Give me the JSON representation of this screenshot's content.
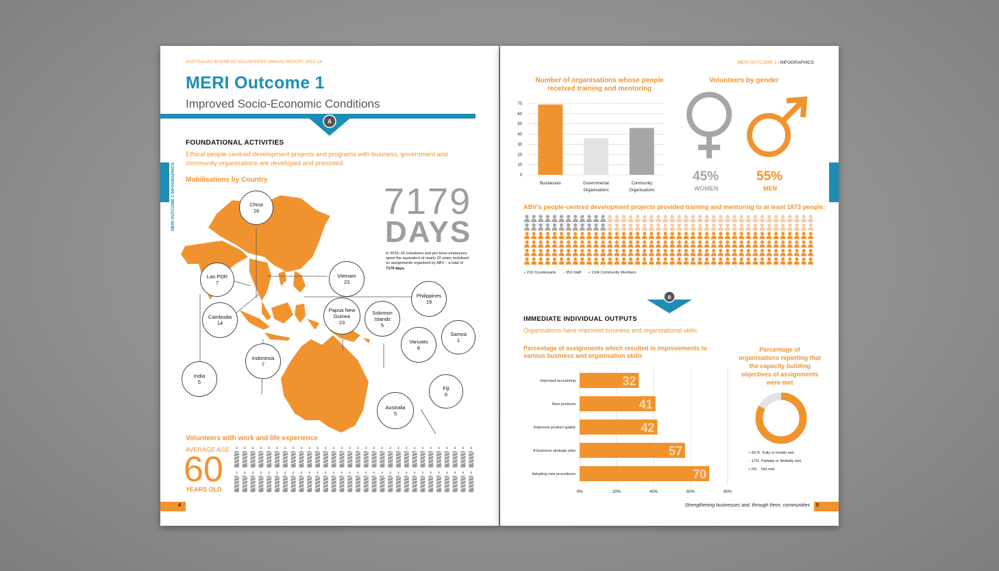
{
  "left_page": {
    "running_header": "AUSTRALIAN BUSINESS VOLUNTEERS ANNUAL REPORT 2015–16",
    "title": "MERI Outcome 1",
    "subtitle": "Improved Socio-Economic Conditions",
    "marker": "A",
    "side_tab": "MERI OUTCOME 1 INFOGRAPHICS",
    "section_heading": "FOUNDATIONAL ACTIVITIES",
    "section_text": "Ethical people-centred development projects and programs with business, government and community organisations are developed and promoted.",
    "map_heading": "Mobilisations by Country",
    "days_number": "7179",
    "days_word": "DAYS",
    "days_text_1": "In 2015–16 volunteers and pro bono employees spent the equivalent of nearly 20 years mobilised on assignments organised by ABV – a total of ",
    "days_text_bold": "7179 days.",
    "countries": [
      {
        "name": "China",
        "value": "16"
      },
      {
        "name": "Lao PDR",
        "value": "7"
      },
      {
        "name": "Vietnam",
        "value": "23"
      },
      {
        "name": "Philippines",
        "value": "19"
      },
      {
        "name": "Cambodia",
        "value": "14"
      },
      {
        "name": "Papua New Guinea",
        "value": "23"
      },
      {
        "name": "Solomon Islands",
        "value": "5"
      },
      {
        "name": "Samoa",
        "value": "1"
      },
      {
        "name": "Vanuatu",
        "value": "8"
      },
      {
        "name": "India",
        "value": "5"
      },
      {
        "name": "Indonesia",
        "value": "7"
      },
      {
        "name": "Fiji",
        "value": "6"
      },
      {
        "name": "Australia",
        "value": "5"
      }
    ],
    "age_heading": "Volunteers with work and life experience",
    "age_label_top": "AVERAGE AGE",
    "age_value": "60",
    "age_label_bottom": "YEARS OLD",
    "page_number": "4"
  },
  "right_page": {
    "running_header_a": "MERI OUTCOME 1 | ",
    "running_header_b": "INFOGRAPHICS",
    "gender_heading": "Volunteers by gender",
    "women_pct": "45%",
    "women_label": "WOMEN",
    "men_pct": "55%",
    "men_label": "MEN",
    "people_heading": "ABV’s people-centred development projects provided training and mentoring to at least 1873 people:",
    "people_legend": [
      "216 Counterparts",
      "553 Staff",
      "1104 Community Members"
    ],
    "marker": "B",
    "section_heading": "IMMEDIATE INDIVIDUAL OUTPUTS",
    "section_text": "Organisations have improved business and organisational skills.",
    "donut_heading": "Percentage of organisations reporting that the capacity building objectives of assignments were met",
    "donut_legend": [
      {
        "pct": "83 %",
        "label": "Fully or mostly met"
      },
      {
        "pct": "17%",
        "label": "Partially or limitedly met"
      },
      {
        "pct": "0%",
        "label": "Not met"
      }
    ],
    "footer_text": "Strengthening businesses and, through them, communities",
    "page_number": "5",
    "colors": {
      "orange": "#f0932f",
      "light_orange": "#f7c9a0",
      "grey": "#a6a6a6",
      "light_grey": "#e3e3e3",
      "teal": "#1e8db5"
    }
  },
  "chart_data": [
    {
      "type": "bar",
      "title": "Number of organisations whose people received training and mentoring",
      "categories": [
        "Businesses",
        "Governmental Organisations",
        "Community Organisations"
      ],
      "values": [
        69,
        36,
        46
      ],
      "ylim": [
        0,
        70
      ],
      "yticks": [
        "0",
        "10",
        "20",
        "30",
        "40",
        "50",
        "60",
        "70"
      ],
      "grid": true
    },
    {
      "type": "bar",
      "title": "Percentage of assignments which resulted in improvements to various business and organisation skills",
      "categories": [
        "Improved accounting",
        "New products",
        "Improved product quality",
        "A business strategic plan",
        "Adopting new procedures"
      ],
      "values": [
        32,
        41,
        42,
        57,
        70
      ],
      "xlim": [
        0,
        80
      ],
      "xticks": [
        "0%",
        "20%",
        "40%",
        "60%",
        "80%"
      ],
      "grid": true
    },
    {
      "type": "pie",
      "title": "",
      "labels": [
        "Fully or mostly met",
        "Partially or limitedly met",
        "Not met"
      ],
      "values": [
        83,
        17,
        0
      ]
    }
  ]
}
